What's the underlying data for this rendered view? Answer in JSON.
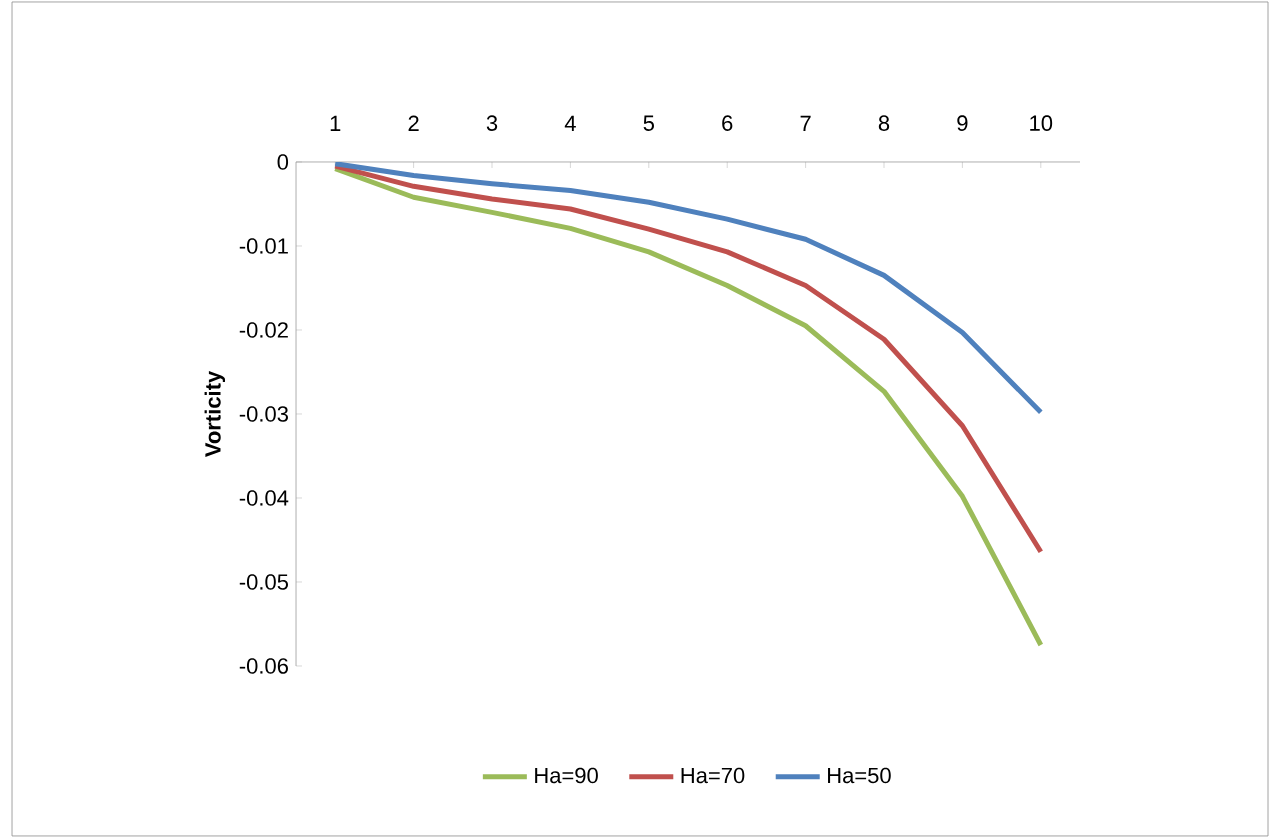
{
  "chart_data": {
    "type": "line",
    "ylabel": "Vorticity",
    "categories": [
      "1",
      "2",
      "3",
      "4",
      "5",
      "6",
      "7",
      "8",
      "9",
      "10"
    ],
    "series": [
      {
        "name": "Ha=90",
        "color": "#9bbb59",
        "values": [
          -0.0008,
          -0.0042,
          -0.006,
          -0.0079,
          -0.0107,
          -0.0147,
          -0.0195,
          -0.0273,
          -0.0398,
          -0.0575
        ]
      },
      {
        "name": "Ha=70",
        "color": "#c0504d",
        "values": [
          -0.0005,
          -0.0029,
          -0.0044,
          -0.0056,
          -0.008,
          -0.0107,
          -0.0147,
          -0.0211,
          -0.0314,
          -0.0464
        ]
      },
      {
        "name": "Ha=50",
        "color": "#4f81bd",
        "values": [
          -0.0002,
          -0.0016,
          -0.0026,
          -0.0034,
          -0.0048,
          -0.0068,
          -0.0092,
          -0.0135,
          -0.0203,
          -0.0298
        ]
      }
    ],
    "ylim": [
      -0.06,
      0
    ],
    "yticks": [
      0,
      -0.01,
      -0.02,
      -0.03,
      -0.04,
      -0.05,
      -0.06
    ],
    "legend": "bottom",
    "grid": false,
    "marker": "none",
    "line_style": "solid"
  }
}
